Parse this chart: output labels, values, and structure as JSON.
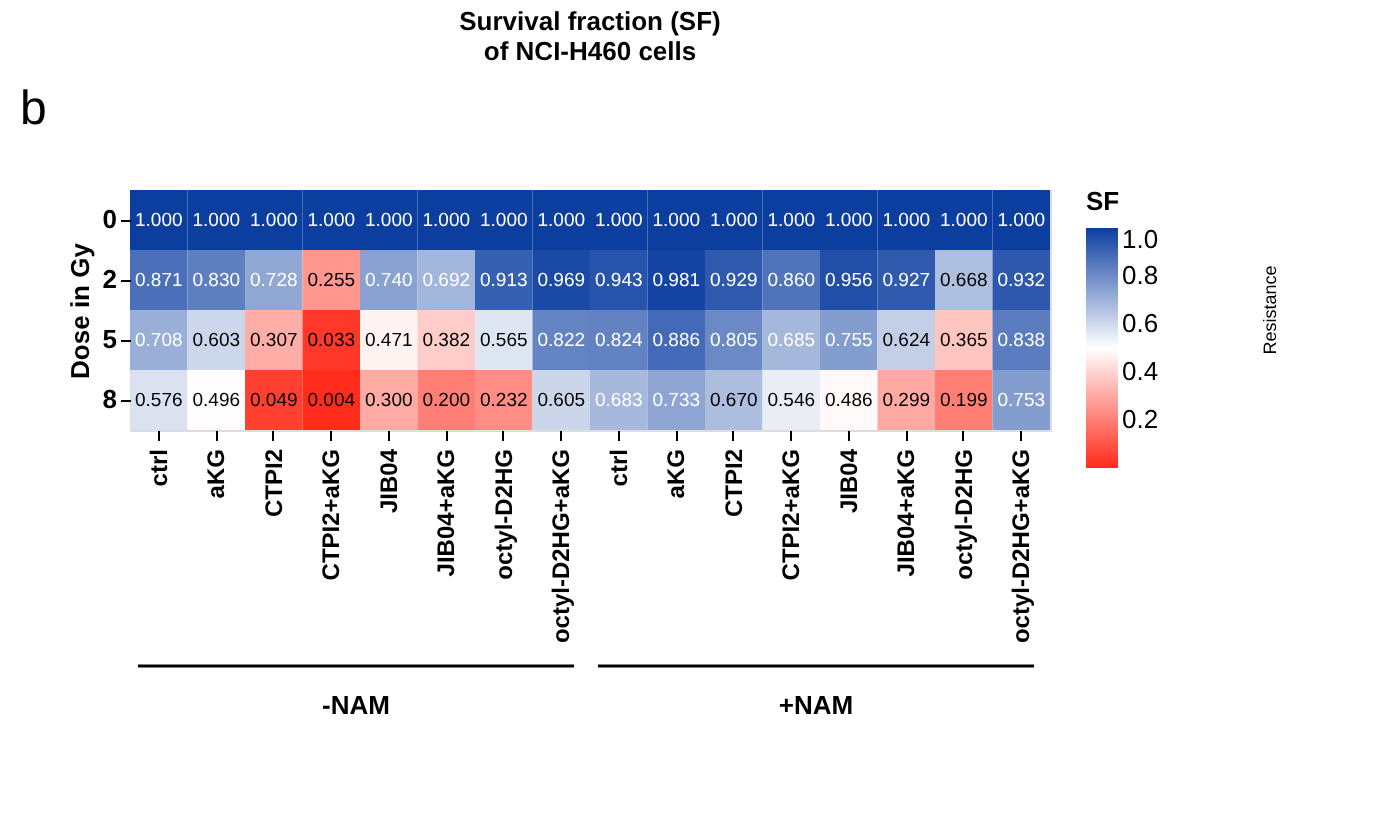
{
  "chart_data": {
    "type": "heatmap",
    "title": "Survival fraction (SF)\nof NCI-H460 cells",
    "ylabel": "Dose in Gy",
    "clabel": "SF",
    "categories": [
      "ctrl",
      "aKG",
      "CTPI2",
      "CTPI2+aKG",
      "JIB04",
      "JIB04+aKG",
      "octyl-D2HG",
      "octyl-D2HG+aKG",
      "ctrl",
      "aKG",
      "CTPI2",
      "CTPI2+aKG",
      "JIB04",
      "JIB04+aKG",
      "octyl-D2HG",
      "octyl-D2HG+aKG"
    ],
    "y_categories": [
      "0",
      "2",
      "5",
      "8"
    ],
    "cells": [
      [
        1.0,
        1.0,
        1.0,
        1.0,
        1.0,
        1.0,
        1.0,
        1.0,
        1.0,
        1.0,
        1.0,
        1.0,
        1.0,
        1.0,
        1.0,
        1.0
      ],
      [
        0.871,
        0.83,
        0.728,
        0.255,
        0.74,
        0.692,
        0.913,
        0.969,
        0.943,
        0.981,
        0.929,
        0.86,
        0.956,
        0.927,
        0.668,
        0.932
      ],
      [
        0.708,
        0.603,
        0.307,
        0.033,
        0.471,
        0.382,
        0.565,
        0.822,
        0.824,
        0.886,
        0.805,
        0.685,
        0.755,
        0.624,
        0.365,
        0.838
      ],
      [
        0.576,
        0.496,
        0.049,
        0.004,
        0.3,
        0.2,
        0.232,
        0.605,
        0.683,
        0.733,
        0.67,
        0.546,
        0.486,
        0.299,
        0.199,
        0.753
      ]
    ],
    "cell_labels": [
      [
        "1.000",
        "1.000",
        "1.000",
        "1.000",
        "1.000",
        "1.000",
        "1.000",
        "1.000",
        "1.000",
        "1.000",
        "1.000",
        "1.000",
        "1.000",
        "1.000",
        "1.000",
        "1.000"
      ],
      [
        "0.871",
        "0.830",
        "0.728",
        "0.255",
        "0.740",
        "0.692",
        "0.913",
        "0.969",
        "0.943",
        "0.981",
        "0.929",
        "0.860",
        "0.956",
        "0.927",
        "0.668",
        "0.932"
      ],
      [
        "0.708",
        "0.603",
        "0.307",
        "0.033",
        "0.471",
        "0.382",
        "0.565",
        "0.822",
        "0.824",
        "0.886",
        "0.805",
        "0.685",
        "0.755",
        "0.624",
        "0.365",
        "0.838"
      ],
      [
        "0.576",
        "0.496",
        "0.049",
        "0.004",
        "0.300",
        "0.200",
        "0.232",
        "0.605",
        "0.683",
        "0.733",
        "0.670",
        "0.546",
        "0.486",
        "0.299",
        "0.199",
        "0.753"
      ]
    ],
    "clim": [
      0,
      1
    ],
    "cticks": [
      0.2,
      0.4,
      0.6,
      0.8,
      {
        "value": 1,
        "label": "1.0"
      }
    ],
    "annotations": [
      "b",
      "-NAM",
      "+NAM",
      "Resistance"
    ]
  }
}
